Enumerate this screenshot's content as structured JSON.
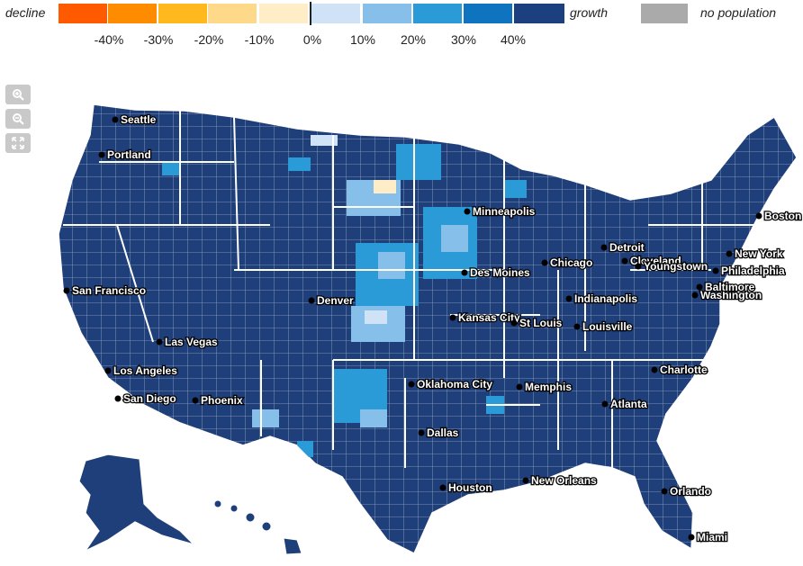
{
  "legend": {
    "decline_label": "decline",
    "growth_label": "growth",
    "no_population_label": "no population",
    "no_population_color": "#aaaaaa",
    "swatches": [
      {
        "color": "#ff5a00"
      },
      {
        "color": "#ff8c00"
      },
      {
        "color": "#ffb81e"
      },
      {
        "color": "#ffd98a"
      },
      {
        "color": "#ffedc8"
      },
      {
        "color": "#d0e3f6"
      },
      {
        "color": "#86c0ea"
      },
      {
        "color": "#2b9bd8"
      },
      {
        "color": "#0f74bf"
      },
      {
        "color": "#1c3f80"
      }
    ],
    "ticks": [
      "-40%",
      "-30%",
      "-20%",
      "-10%",
      "0%",
      "10%",
      "20%",
      "30%",
      "40%"
    ]
  },
  "controls": {
    "zoom_in_icon": "magnifier-plus-icon",
    "zoom_out_icon": "magnifier-minus-icon",
    "fullscreen_icon": "expand-arrows-icon"
  },
  "map_colors": {
    "county_fill": "#1f3f7a",
    "county_border": "#ffffff"
  },
  "cities": [
    {
      "name": "Seattle"
    },
    {
      "name": "Portland"
    },
    {
      "name": "San Francisco"
    },
    {
      "name": "Los Angeles"
    },
    {
      "name": "San Diego"
    },
    {
      "name": "Las Vegas"
    },
    {
      "name": "Phoenix"
    },
    {
      "name": "Denver"
    },
    {
      "name": "Minneapolis"
    },
    {
      "name": "Des Moines"
    },
    {
      "name": "Kansas City"
    },
    {
      "name": "Oklahoma City"
    },
    {
      "name": "Dallas"
    },
    {
      "name": "Houston"
    },
    {
      "name": "New Orleans"
    },
    {
      "name": "Memphis"
    },
    {
      "name": "St Louis"
    },
    {
      "name": "Chicago"
    },
    {
      "name": "Indianapolis"
    },
    {
      "name": "Louisville"
    },
    {
      "name": "Detroit"
    },
    {
      "name": "Cleveland"
    },
    {
      "name": "Youngstown"
    },
    {
      "name": "Atlanta"
    },
    {
      "name": "Charlotte"
    },
    {
      "name": "Orlando"
    },
    {
      "name": "Miami"
    },
    {
      "name": "Washington"
    },
    {
      "name": "Baltimore"
    },
    {
      "name": "Philadelphia"
    },
    {
      "name": "New York"
    },
    {
      "name": "Boston"
    }
  ]
}
